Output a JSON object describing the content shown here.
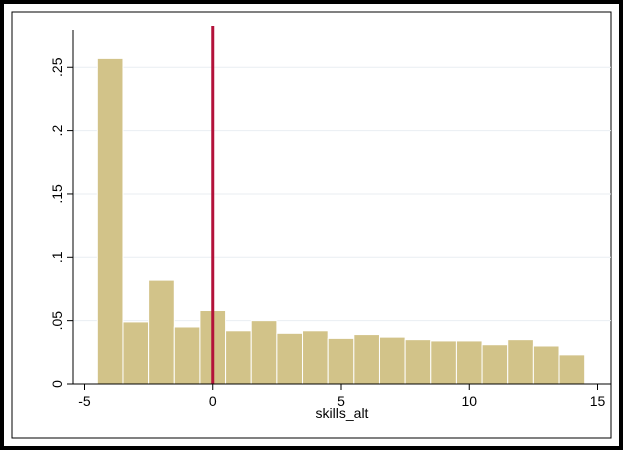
{
  "chart_data": {
    "type": "bar",
    "xlabel": "skills_alt",
    "ylabel": "",
    "xlim": [
      -5,
      15
    ],
    "ylim": [
      0,
      0.27
    ],
    "x_ticks": [
      -5,
      0,
      5,
      10,
      15
    ],
    "x_tick_labels": [
      "-5",
      "0",
      "5",
      "10",
      "15"
    ],
    "y_ticks": [
      0,
      0.05,
      0.1,
      0.15,
      0.2,
      0.25
    ],
    "y_tick_labels": [
      "0",
      ".05",
      ".1",
      ".15",
      ".2",
      ".25"
    ],
    "grid": true,
    "bins": [
      {
        "x0": -4.5,
        "x1": -3.5,
        "value": 0.257
      },
      {
        "x0": -3.5,
        "x1": -2.5,
        "value": 0.049
      },
      {
        "x0": -2.5,
        "x1": -1.5,
        "value": 0.082
      },
      {
        "x0": -1.5,
        "x1": -0.5,
        "value": 0.045
      },
      {
        "x0": -0.5,
        "x1": 0.5,
        "value": 0.058
      },
      {
        "x0": 0.5,
        "x1": 1.5,
        "value": 0.042
      },
      {
        "x0": 1.5,
        "x1": 2.5,
        "value": 0.05
      },
      {
        "x0": 2.5,
        "x1": 3.5,
        "value": 0.04
      },
      {
        "x0": 3.5,
        "x1": 4.5,
        "value": 0.042
      },
      {
        "x0": 4.5,
        "x1": 5.5,
        "value": 0.036
      },
      {
        "x0": 5.5,
        "x1": 6.5,
        "value": 0.039
      },
      {
        "x0": 6.5,
        "x1": 7.5,
        "value": 0.037
      },
      {
        "x0": 7.5,
        "x1": 8.5,
        "value": 0.035
      },
      {
        "x0": 8.5,
        "x1": 9.5,
        "value": 0.034
      },
      {
        "x0": 9.5,
        "x1": 10.5,
        "value": 0.034
      },
      {
        "x0": 10.5,
        "x1": 11.5,
        "value": 0.031
      },
      {
        "x0": 11.5,
        "x1": 12.5,
        "value": 0.035
      },
      {
        "x0": 12.5,
        "x1": 13.5,
        "value": 0.03
      },
      {
        "x0": 13.5,
        "x1": 14.5,
        "value": 0.023
      }
    ],
    "reference_line": {
      "x": 0,
      "color": "#b3123a"
    },
    "bar_color": "#d2c389",
    "bar_edge_color": "#ffffff",
    "frame_color": "#000000",
    "grid_color": "#e9eef2"
  }
}
